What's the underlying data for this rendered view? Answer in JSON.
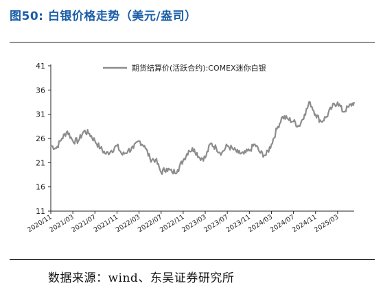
{
  "figure": {
    "title": "图50: 白银价格走势（美元/盎司）",
    "source": "数据来源：wind、东吴证券研究所"
  },
  "colors": {
    "title": "#1a5ea8",
    "line": "#8c8c8c",
    "axis": "#222222"
  },
  "chart_data": {
    "type": "line",
    "title": "",
    "xlabel": "",
    "ylabel": "",
    "ylim": [
      11,
      41
    ],
    "yticks": [
      11,
      16,
      21,
      26,
      31,
      36,
      41
    ],
    "xlim": [
      "2020-11",
      "2025-06"
    ],
    "xticks": [
      "2020/11",
      "2021/03",
      "2021/07",
      "2021/11",
      "2022/03",
      "2022/07",
      "2022/11",
      "2023/03",
      "2023/07",
      "2023/11",
      "2024/03",
      "2024/07",
      "2024/11",
      "2025/03"
    ],
    "grid": false,
    "legend_position": "top-center",
    "series": [
      {
        "name": "期货结算价(活跃合约):COMEX迷你白银",
        "x": [
          "2020-11",
          "2020-12",
          "2021-01",
          "2021-02",
          "2021-03",
          "2021-04",
          "2021-05",
          "2021-06",
          "2021-07",
          "2021-08",
          "2021-09",
          "2021-10",
          "2021-11",
          "2021-12",
          "2022-01",
          "2022-02",
          "2022-03",
          "2022-04",
          "2022-05",
          "2022-06",
          "2022-07",
          "2022-08",
          "2022-09",
          "2022-10",
          "2022-11",
          "2022-12",
          "2023-01",
          "2023-02",
          "2023-03",
          "2023-04",
          "2023-05",
          "2023-06",
          "2023-07",
          "2023-08",
          "2023-09",
          "2023-10",
          "2023-11",
          "2023-12",
          "2024-01",
          "2024-02",
          "2024-03",
          "2024-04",
          "2024-05",
          "2024-06",
          "2024-07",
          "2024-08",
          "2024-09",
          "2024-10",
          "2024-11",
          "2024-12",
          "2025-01",
          "2025-02",
          "2025-03",
          "2025-04",
          "2025-05",
          "2025-06"
        ],
        "values": [
          24.5,
          24.0,
          26.0,
          27.5,
          25.5,
          25.5,
          27.5,
          27.0,
          25.5,
          24.0,
          22.8,
          23.5,
          24.5,
          22.6,
          23.5,
          24.0,
          25.5,
          24.5,
          21.8,
          21.6,
          19.0,
          19.8,
          19.0,
          19.5,
          21.5,
          23.5,
          23.8,
          22.0,
          22.0,
          25.0,
          24.0,
          23.0,
          24.5,
          23.8,
          23.0,
          22.8,
          23.5,
          24.8,
          23.0,
          22.5,
          24.8,
          28.0,
          30.5,
          30.0,
          29.5,
          28.5,
          31.0,
          33.5,
          31.0,
          29.5,
          30.5,
          32.5,
          33.5,
          31.5,
          32.5,
          33.5
        ]
      }
    ]
  }
}
